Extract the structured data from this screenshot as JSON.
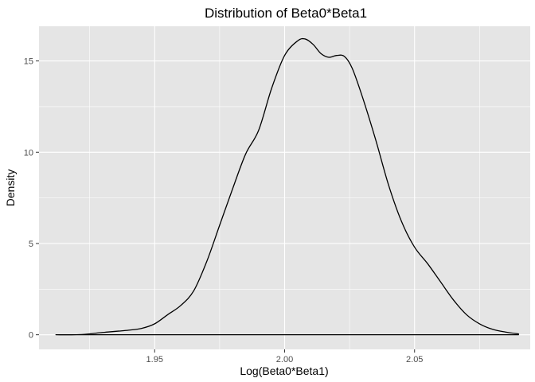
{
  "chart_data": {
    "type": "area",
    "title": "Distribution of Beta0*Beta1",
    "xlabel": "Log(Beta0*Beta1)",
    "ylabel": "Density",
    "xlim": [
      1.9055,
      2.0945
    ],
    "ylim": [
      -0.8,
      16.9
    ],
    "x_ticks": [
      1.95,
      2.0,
      2.05
    ],
    "x_tick_labels": [
      "1.95",
      "2.00",
      "2.05"
    ],
    "y_ticks": [
      0,
      5,
      10,
      15
    ],
    "y_tick_labels": [
      "0",
      "5",
      "10",
      "15"
    ],
    "grid": true,
    "background": "#e5e5e5",
    "grid_color": "#ffffff",
    "line_color": "#000000",
    "series": [
      {
        "x": [
          1.912,
          1.92,
          1.925,
          1.928,
          1.932,
          1.936,
          1.94,
          1.945,
          1.95,
          1.955,
          1.96,
          1.965,
          1.97,
          1.975,
          1.98,
          1.985,
          1.99,
          1.995,
          2.0,
          2.005,
          2.008,
          2.011,
          2.014,
          2.017,
          2.02,
          2.023,
          2.026,
          2.03,
          2.035,
          2.04,
          2.045,
          2.05,
          2.055,
          2.06,
          2.065,
          2.07,
          2.075,
          2.08,
          2.085,
          2.09
        ],
        "y": [
          0.0,
          0.0,
          0.05,
          0.1,
          0.15,
          0.2,
          0.25,
          0.35,
          0.6,
          1.1,
          1.6,
          2.4,
          4.0,
          6.0,
          8.0,
          9.9,
          11.2,
          13.5,
          15.3,
          16.1,
          16.2,
          15.9,
          15.4,
          15.2,
          15.3,
          15.25,
          14.6,
          13.0,
          10.7,
          8.2,
          6.2,
          4.8,
          3.9,
          2.9,
          1.9,
          1.1,
          0.6,
          0.3,
          0.15,
          0.05
        ]
      }
    ]
  }
}
